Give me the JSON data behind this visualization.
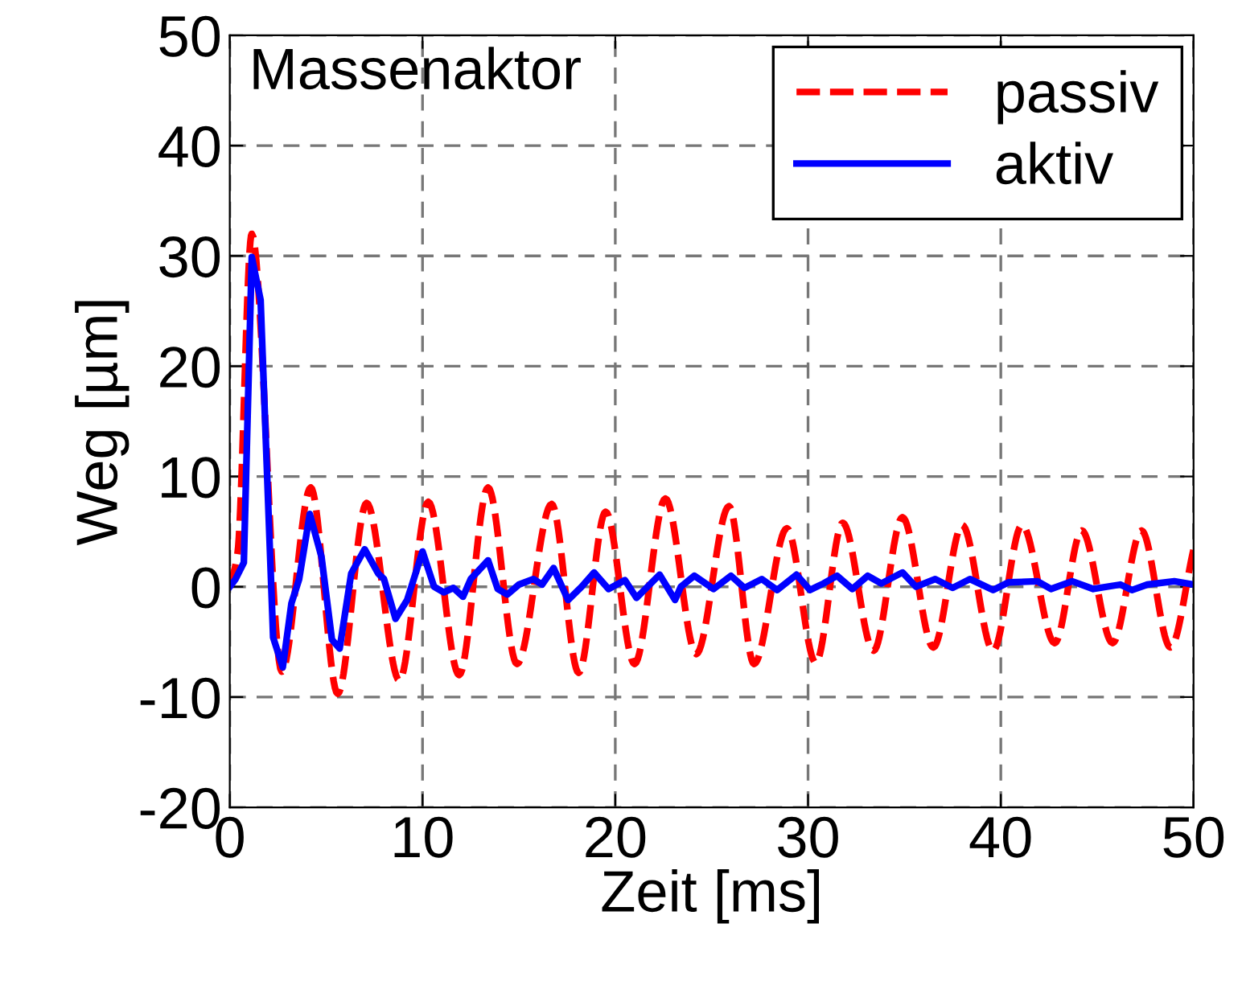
{
  "chart_data": {
    "type": "line",
    "xlabel": "Zeit [ms]",
    "ylabel": "Weg [µm]",
    "annotations": [
      "Massenaktor"
    ],
    "xlim": [
      0,
      50
    ],
    "ylim": [
      -20,
      50
    ],
    "xticks": [
      0,
      10,
      20,
      30,
      40,
      50
    ],
    "yticks": [
      -20,
      -10,
      0,
      10,
      20,
      30,
      40,
      50
    ],
    "grid": true,
    "legend": "top right",
    "series": [
      {
        "name": "passiv",
        "color": "#ff0000",
        "line_style": "dashed",
        "x": [
          0,
          0.4,
          1.14,
          2.7,
          4.2,
          5.6,
          7.1,
          8.8,
          10.3,
          11.9,
          13.4,
          14.9,
          16.7,
          18.1,
          19.5,
          21.0,
          22.6,
          24.2,
          25.9,
          27.2,
          28.9,
          30.4,
          31.8,
          33.4,
          34.9,
          36.5,
          38.0,
          39.6,
          41.1,
          42.8,
          44.2,
          45.8,
          47.3,
          48.8,
          50
        ],
        "values": [
          0,
          3,
          32,
          -7.7,
          9,
          -9.7,
          7.6,
          -8.5,
          7.7,
          -8,
          9,
          -7,
          7.5,
          -7.8,
          6.8,
          -7,
          8,
          -6.1,
          7.3,
          -7,
          5.3,
          -6.9,
          5.8,
          -5.8,
          6.3,
          -5.5,
          5.6,
          -5.8,
          5.6,
          -5.1,
          5.1,
          -5.1,
          5.1,
          -5.5,
          3.4
        ]
      },
      {
        "name": "aktiv",
        "color": "#0000ff",
        "line_style": "solid",
        "x": [
          0,
          0.3,
          0.73,
          1.14,
          1.6,
          2.25,
          2.75,
          3.2,
          3.6,
          4.15,
          4.76,
          5.3,
          5.7,
          6.3,
          7.0,
          7.7,
          8.0,
          8.6,
          9.2,
          10.0,
          10.6,
          11.1,
          11.6,
          12.1,
          12.5,
          13.4,
          13.9,
          14.4,
          15.0,
          15.75,
          16.2,
          16.8,
          17.55,
          18.25,
          18.9,
          19.65,
          20.5,
          21.1,
          22.3,
          23.1,
          23.4,
          24.1,
          25.1,
          26.0,
          26.7,
          27.6,
          28.4,
          29.4,
          30.1,
          30.8,
          31.5,
          32.3,
          33.1,
          33.8,
          34.9,
          35.6,
          36.6,
          37.5,
          38.4,
          39.6,
          40.4,
          41.9,
          42.6,
          43.7,
          44.8,
          46.2,
          46.8,
          47.6,
          49.0,
          50
        ],
        "values": [
          0,
          0.7,
          2.2,
          29.9,
          26,
          -4.6,
          -7.3,
          -1.5,
          0.7,
          6.6,
          2.7,
          -4.8,
          -5.6,
          1.2,
          3.4,
          1.2,
          0.7,
          -2.9,
          -1.2,
          3.2,
          0,
          -0.5,
          -0.1,
          -0.9,
          0.7,
          2.4,
          -0.2,
          -0.7,
          0.2,
          0.7,
          0.2,
          1.7,
          -1.2,
          0,
          1.3,
          -0.2,
          0.6,
          -1.0,
          1.1,
          -1.2,
          0,
          1.0,
          -0.2,
          1.0,
          -0.1,
          0.7,
          -0.3,
          1.1,
          -0.3,
          0.3,
          1.0,
          -0.2,
          1.0,
          0.3,
          1.3,
          0,
          0.7,
          -0.1,
          0.7,
          -0.3,
          0.4,
          0.5,
          -0.2,
          0.5,
          -0.2,
          0.2,
          -0.3,
          0.2,
          0.5,
          0.2
        ]
      }
    ]
  }
}
